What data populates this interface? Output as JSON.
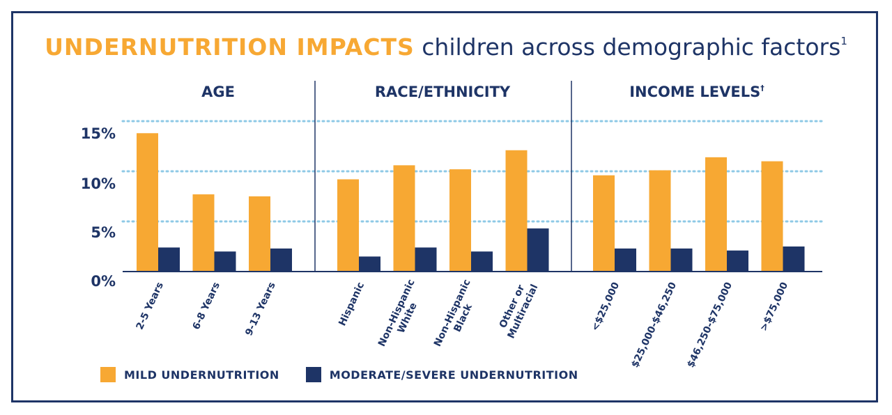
{
  "title": {
    "highlight": "UNDERNUTRITION IMPACTS",
    "rest": "children across demographic factors",
    "footnote": "1"
  },
  "colors": {
    "mild": "#f7a833",
    "moderate": "#1e3466",
    "grid": "#8ec9e6",
    "text": "#1e3466"
  },
  "chart_data": {
    "type": "bar",
    "ylabel": "",
    "ylim": [
      0,
      15
    ],
    "yticks": [
      "0%",
      "5%",
      "10%",
      "15%"
    ],
    "ytick_values": [
      0,
      5,
      10,
      15
    ],
    "grid": "dotted at 5, 10, 15",
    "legend": [
      {
        "name": "MILD UNDERNUTRITION",
        "swatch": "mild"
      },
      {
        "name": "MODERATE/SEVERE UNDERNUTRITION",
        "swatch": "moderate"
      }
    ],
    "groups": [
      {
        "title": "AGE",
        "footnote": "",
        "categories": [
          {
            "label": [
              "2-5 Years"
            ],
            "mild": 13.8,
            "moderate": 2.4
          },
          {
            "label": [
              "6-8 Years"
            ],
            "mild": 7.7,
            "moderate": 2.0
          },
          {
            "label": [
              "9-13 Years"
            ],
            "mild": 7.5,
            "moderate": 2.3
          }
        ]
      },
      {
        "title": "RACE/ETHNICITY",
        "footnote": "",
        "categories": [
          {
            "label": [
              "Hispanic"
            ],
            "mild": 9.2,
            "moderate": 1.5
          },
          {
            "label": [
              "Non-Hispanic",
              "White"
            ],
            "mild": 10.6,
            "moderate": 2.4
          },
          {
            "label": [
              "Non-Hispanic",
              "Black"
            ],
            "mild": 10.2,
            "moderate": 2.0
          },
          {
            "label": [
              "Other or",
              "Multiracial"
            ],
            "mild": 12.1,
            "moderate": 4.3
          }
        ]
      },
      {
        "title": "INCOME LEVELS",
        "footnote": "†",
        "categories": [
          {
            "label": [
              "<$25,000"
            ],
            "mild": 9.6,
            "moderate": 2.3
          },
          {
            "label": [
              "$25,000-$46,250"
            ],
            "mild": 10.1,
            "moderate": 2.3
          },
          {
            "label": [
              "$46,250-$75,000"
            ],
            "mild": 11.4,
            "moderate": 2.1
          },
          {
            "label": [
              ">$75,000"
            ],
            "mild": 11.0,
            "moderate": 2.5
          }
        ]
      }
    ]
  }
}
